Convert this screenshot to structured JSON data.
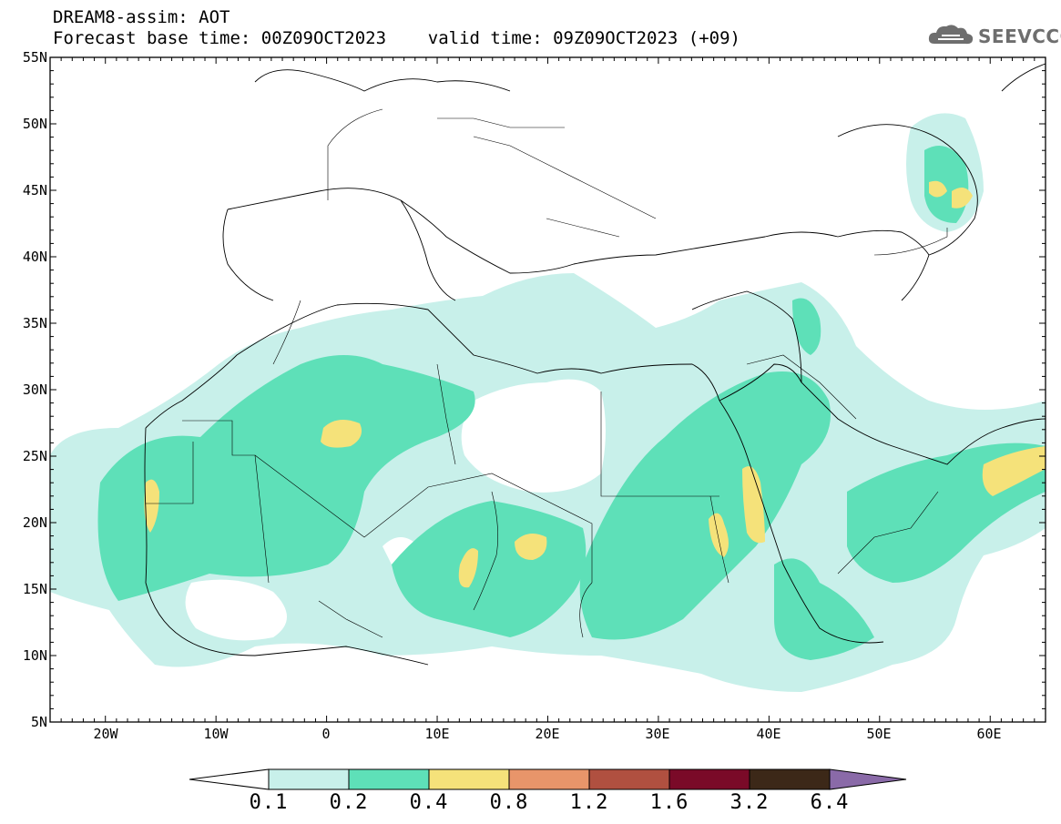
{
  "header": {
    "line1": "DREAM8-assim: AOT",
    "line2": "Forecast base time: 00Z09OCT2023    valid time: 09Z09OCT2023 (+09)"
  },
  "logo": {
    "text": "SEEVCCC",
    "icon": "cloud-icon"
  },
  "map": {
    "lon_range": [
      -25,
      65
    ],
    "lat_range": [
      5,
      55
    ],
    "lat_labels": [
      "55N",
      "50N",
      "45N",
      "40N",
      "35N",
      "30N",
      "25N",
      "20N",
      "15N",
      "10N",
      "5N"
    ],
    "lon_labels": [
      "20W",
      "10W",
      "0",
      "10E",
      "20E",
      "30E",
      "40E",
      "50E",
      "60E"
    ]
  },
  "colorbar": {
    "labels": [
      "0.1",
      "0.2",
      "0.4",
      "0.8",
      "1.2",
      "1.6",
      "3.2",
      "6.4"
    ],
    "colors": [
      "#c8f0ea",
      "#5ee0b8",
      "#f5e27a",
      "#e8956a",
      "#b05040",
      "#7a0a28",
      "#3c2818",
      "#8a6aa8"
    ]
  }
}
